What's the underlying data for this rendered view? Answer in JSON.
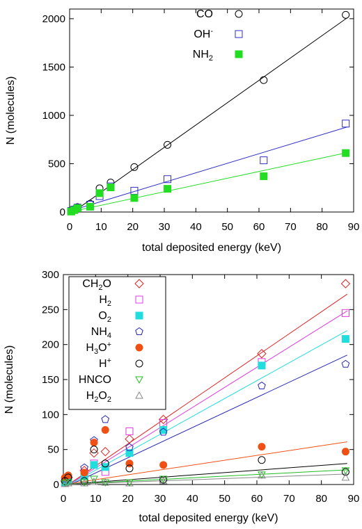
{
  "chart_data": [
    {
      "type": "scatter",
      "xlabel": "total deposited energy (keV)",
      "ylabel": "N (molecules)",
      "xlim": [
        0,
        90
      ],
      "ylim": [
        0,
        2100
      ],
      "xticks": [
        0,
        10,
        20,
        30,
        40,
        50,
        60,
        70,
        80,
        90
      ],
      "yticks": [
        0,
        500,
        1000,
        1500,
        2000
      ],
      "grid": false,
      "legend": "top-center",
      "series": [
        {
          "name": "CO",
          "marker": "circle-open",
          "color": "#000000",
          "x": [
            0.5,
            1.5,
            2.5,
            6.5,
            9.5,
            13,
            20.5,
            31,
            61.5,
            87.5
          ],
          "y": [
            15,
            30,
            50,
            85,
            245,
            305,
            465,
            695,
            1365,
            2040
          ],
          "fit": [
            [
              0,
              -25
            ],
            [
              88,
              2010
            ]
          ]
        },
        {
          "name": "OH",
          "name_sup": "-",
          "marker": "square-open",
          "color": "#2e2ec8",
          "x": [
            0.5,
            1.5,
            2.5,
            6.5,
            9.5,
            13,
            20.5,
            31,
            61.5,
            87.5
          ],
          "y": [
            10,
            25,
            45,
            75,
            165,
            265,
            220,
            340,
            535,
            915
          ],
          "fit": [
            [
              0,
              10
            ],
            [
              88,
              880
            ]
          ]
        },
        {
          "name": "NH",
          "name_sub": "2",
          "marker": "square-filled",
          "color": "#22dd22",
          "x": [
            0.5,
            1.5,
            2.5,
            6.5,
            9.5,
            13,
            20.5,
            31,
            61.5,
            87.5
          ],
          "y": [
            5,
            20,
            40,
            55,
            195,
            255,
            145,
            240,
            370,
            610
          ],
          "fit": [
            [
              0,
              0
            ],
            [
              88,
              615
            ]
          ]
        }
      ]
    },
    {
      "type": "scatter",
      "xlabel": "total deposited energy (keV)",
      "ylabel": "N (molecules)",
      "xlim": [
        0,
        90
      ],
      "ylim": [
        0,
        300
      ],
      "xticks": [
        0,
        10,
        20,
        30,
        40,
        50,
        60,
        70,
        80,
        90
      ],
      "yticks": [
        0,
        50,
        100,
        150,
        200,
        250,
        300
      ],
      "grid": false,
      "legend": "top-left",
      "series": [
        {
          "name": "CH",
          "name_sub": "2",
          "name_tail": "O",
          "marker": "diamond-open",
          "color": "#e02020",
          "x": [
            0.5,
            1.5,
            6.5,
            9.5,
            13,
            20.5,
            31,
            61.5,
            87.5
          ],
          "y": [
            5,
            10,
            20,
            45,
            47,
            65,
            93,
            187,
            287
          ],
          "fit": [
            [
              0,
              -5
            ],
            [
              88,
              272
            ]
          ]
        },
        {
          "name": "H",
          "name_sub": "2",
          "marker": "square-open",
          "color": "#e038e0",
          "x": [
            0.5,
            1.5,
            6.5,
            9.5,
            13,
            20.5,
            31,
            61.5,
            87.5
          ],
          "y": [
            3,
            8,
            15,
            30,
            18,
            76,
            88,
            175,
            245
          ],
          "fit": [
            [
              0,
              -5
            ],
            [
              88,
              248
            ]
          ]
        },
        {
          "name": "O",
          "name_sub": "2",
          "marker": "square-filled",
          "color": "#22dddd",
          "x": [
            0.5,
            1.5,
            6.5,
            9.5,
            13,
            20.5,
            31,
            61.5,
            87.5
          ],
          "y": [
            3,
            7,
            12,
            28,
            25,
            45,
            78,
            170,
            208
          ],
          "fit": [
            [
              0,
              -5
            ],
            [
              88,
              220
            ]
          ]
        },
        {
          "name": "NH",
          "name_sub": "4",
          "marker": "pentagon-open",
          "color": "#2424b8",
          "x": [
            0.5,
            1.5,
            6.5,
            9.5,
            13,
            20.5,
            31,
            61.5,
            87.5
          ],
          "y": [
            8,
            10,
            24,
            63,
            93,
            53,
            75,
            141,
            172
          ],
          "fit": [
            [
              0,
              -5
            ],
            [
              88,
              185
            ]
          ]
        },
        {
          "name": "H",
          "name_sub": "3",
          "name_tail": "O",
          "name_sup": "+",
          "marker": "circle-filled",
          "color": "#f05014",
          "x": [
            0.5,
            1.5,
            6.5,
            9.5,
            13,
            20.5,
            31,
            61.5,
            87.5
          ],
          "y": [
            10,
            13,
            17,
            60,
            78,
            30,
            28,
            54,
            47
          ],
          "fit": [
            [
              0,
              0
            ],
            [
              88,
              61
            ]
          ]
        },
        {
          "name": "H",
          "name_sup": "+",
          "marker": "circle-open",
          "color": "#000000",
          "x": [
            0.5,
            1.5,
            6.5,
            9.5,
            13,
            20.5,
            31,
            61.5,
            87.5
          ],
          "y": [
            5,
            10,
            5,
            50,
            30,
            23,
            7,
            35,
            18
          ],
          "fit": [
            [
              0,
              0
            ],
            [
              88,
              30
            ]
          ]
        },
        {
          "name": "HNCO",
          "marker": "triangle-down-open",
          "color": "#22bb22",
          "x": [
            0.5,
            1.5,
            6.5,
            9.5,
            13,
            20.5,
            31,
            61.5,
            87.5
          ],
          "y": [
            2,
            3,
            3,
            8,
            3,
            3,
            8,
            14,
            20
          ],
          "fit": [
            [
              0,
              0
            ],
            [
              88,
              21
            ]
          ]
        },
        {
          "name": "H",
          "name_sub": "2",
          "name_tail": "O",
          "name_sub2": "2",
          "marker": "triangle-up-open",
          "color": "#888888",
          "x": [
            0.5,
            1.5,
            6.5,
            9.5,
            13,
            20.5,
            31,
            61.5,
            87.5
          ],
          "y": [
            1,
            2,
            2,
            4,
            3,
            2,
            5,
            13,
            10
          ],
          "fit": [
            [
              0,
              0
            ],
            [
              88,
              15
            ]
          ]
        }
      ]
    }
  ]
}
